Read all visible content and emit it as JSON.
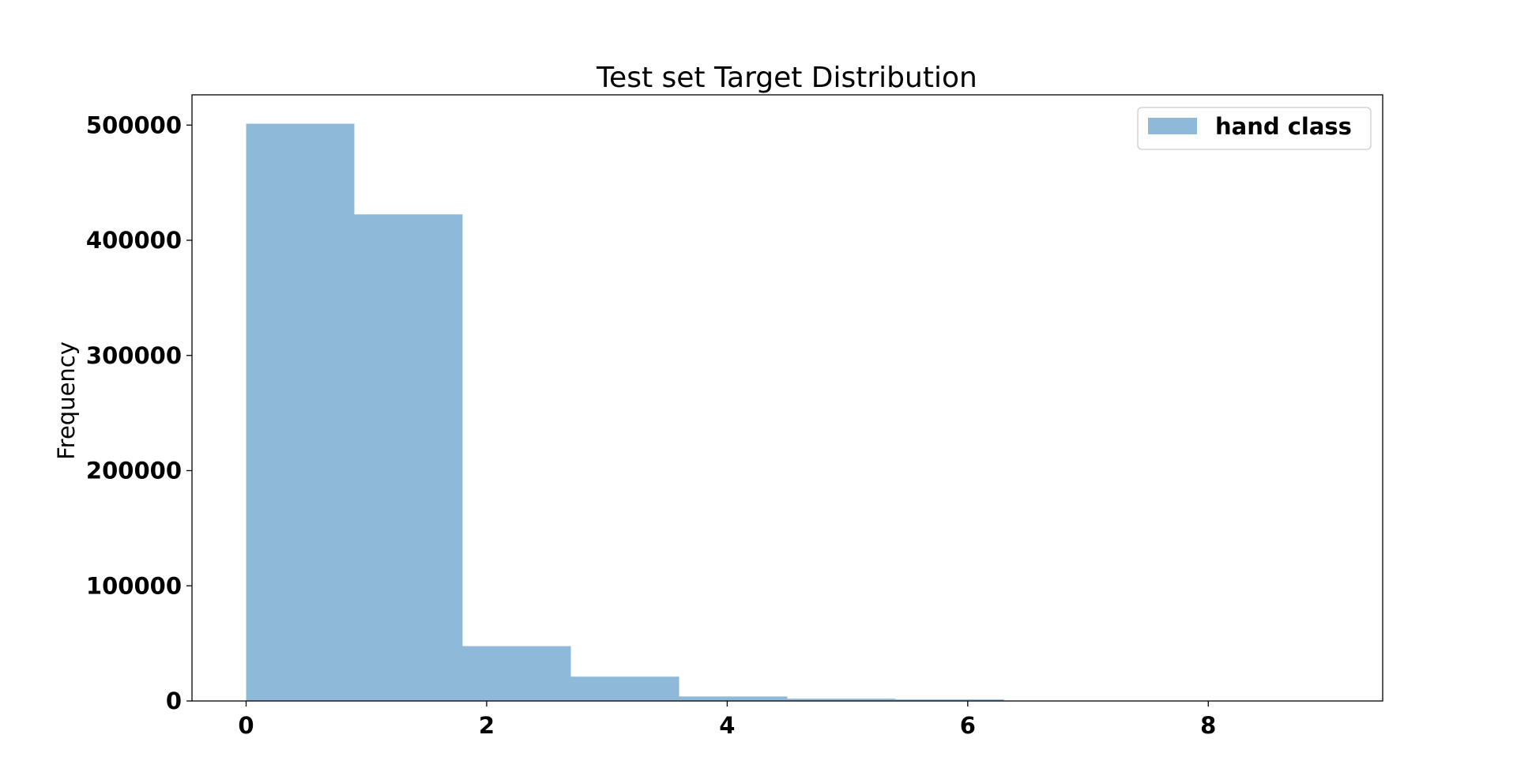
{
  "chart_data": {
    "type": "bar",
    "title": "Test set Target Distribution",
    "xlabel": "",
    "ylabel": "Frequency",
    "bin_edges": [
      0,
      0.9,
      1.8,
      2.7,
      3.6,
      4.5,
      5.4,
      6.3,
      7.2,
      8.1,
      9.0
    ],
    "values": [
      501209,
      422498,
      47622,
      21121,
      3885,
      1996,
      1424,
      230,
      12,
      3
    ],
    "xlim": [
      -0.45,
      9.45
    ],
    "ylim": [
      0,
      526270
    ],
    "xticks": [
      0,
      2,
      4,
      6,
      8
    ],
    "xtick_labels": [
      "0",
      "2",
      "4",
      "6",
      "8"
    ],
    "yticks": [
      0,
      100000,
      200000,
      300000,
      400000,
      500000
    ],
    "ytick_labels": [
      "0",
      "100000",
      "200000",
      "300000",
      "400000",
      "500000"
    ],
    "grid": false,
    "legend": {
      "position": "top-right",
      "entries": [
        {
          "name": "hand class",
          "color": "#8fb9d9"
        }
      ]
    },
    "bar_color": "#8fb9d9"
  }
}
